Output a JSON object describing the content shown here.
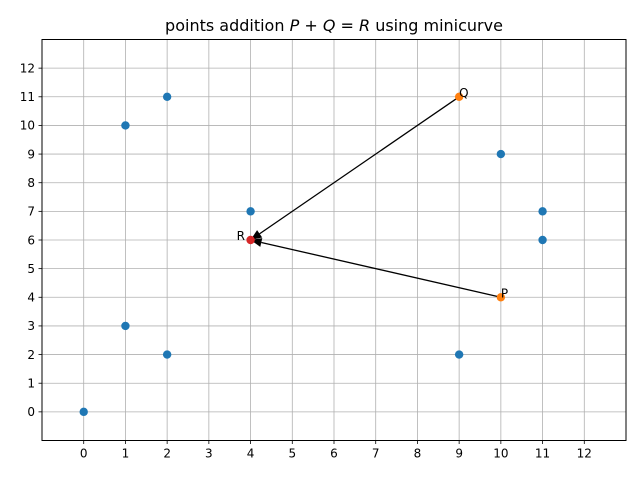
{
  "chart_data": {
    "type": "scatter",
    "title": "points addition P + Q = R using minicurve",
    "title_parts": {
      "prefix": "points addition ",
      "math": [
        "P",
        " + ",
        "Q",
        " = ",
        "R"
      ],
      "suffix": " using minicurve"
    },
    "xlabel": "",
    "ylabel": "",
    "xlim": [
      -1,
      13
    ],
    "ylim": [
      -1,
      13
    ],
    "xticks": [
      0,
      1,
      2,
      3,
      4,
      5,
      6,
      7,
      8,
      9,
      10,
      11,
      12
    ],
    "yticks": [
      0,
      1,
      2,
      3,
      4,
      5,
      6,
      7,
      8,
      9,
      10,
      11,
      12
    ],
    "grid": true,
    "series": [
      {
        "color": "#1f77b4",
        "points": [
          [
            0,
            0
          ],
          [
            1,
            3
          ],
          [
            1,
            10
          ],
          [
            2,
            2
          ],
          [
            2,
            11
          ],
          [
            4,
            7
          ],
          [
            9,
            2
          ],
          [
            10,
            9
          ],
          [
            11,
            6
          ],
          [
            11,
            7
          ]
        ]
      },
      {
        "color": "#ff7f0e",
        "points": [
          [
            9,
            11
          ],
          [
            10,
            4
          ]
        ]
      },
      {
        "color": "#d62728",
        "points": [
          [
            4,
            6
          ]
        ]
      }
    ],
    "annotations": [
      {
        "text": "Q",
        "x": 9,
        "y": 11
      },
      {
        "text": "P",
        "x": 10,
        "y": 4
      },
      {
        "text": "R",
        "x": 4,
        "y": 6
      }
    ],
    "arrows": [
      {
        "from": [
          9,
          11
        ],
        "to": [
          4,
          6
        ]
      },
      {
        "from": [
          10,
          4
        ],
        "to": [
          4,
          6
        ]
      }
    ]
  }
}
